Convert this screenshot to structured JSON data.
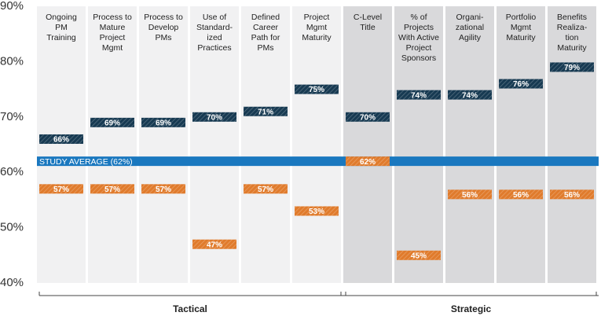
{
  "chart_data": {
    "type": "bar",
    "categories": [
      "Ongoing\nPM\nTraining",
      "Process to\nMature\nProject\nMgmt",
      "Process to\nDevelop\nPMs",
      "Use of\nStandard-\nized\nPractices",
      "Defined\nCareer\nPath for\nPMs",
      "Project\nMgmt\nMaturity",
      "C-Level\nTitle",
      "% of\nProjects\nWith Active\nProject\nSponsors",
      "Organi-\nzational\nAgility",
      "Portfolio\nMgmt\nMaturity",
      "Benefits\nRealiza-\ntion\nMaturity"
    ],
    "groups": [
      {
        "label": "Tactical",
        "size": 6
      },
      {
        "label": "Strategic",
        "size": 5
      }
    ],
    "series": [
      {
        "color": "#173a52",
        "values": [
          66,
          69,
          69,
          70,
          71,
          75,
          70,
          74,
          74,
          76,
          79
        ],
        "value_labels": [
          "66%",
          "69%",
          "69%",
          "70%",
          "71%",
          "75%",
          "70%",
          "74%",
          "74%",
          "76%",
          "79%"
        ]
      },
      {
        "color": "#e07b2c",
        "values": [
          57,
          57,
          57,
          47,
          57,
          53,
          62,
          45,
          56,
          56,
          56
        ],
        "value_labels": [
          "57%",
          "57%",
          "57%",
          "47%",
          "57%",
          "53%",
          "62%",
          "45%",
          "56%",
          "56%",
          "56%"
        ]
      }
    ],
    "average": {
      "value": 62,
      "label": "STUDY AVERAGE (62%)",
      "color": "#1a78bf"
    },
    "ylim": [
      40,
      90
    ],
    "yticks": [
      {
        "value": 40,
        "label": "40%"
      },
      {
        "value": 50,
        "label": "50%"
      },
      {
        "value": 60,
        "label": "60%"
      },
      {
        "value": 70,
        "label": "70%"
      },
      {
        "value": 80,
        "label": "80%"
      },
      {
        "value": 90,
        "label": "90%"
      }
    ]
  }
}
